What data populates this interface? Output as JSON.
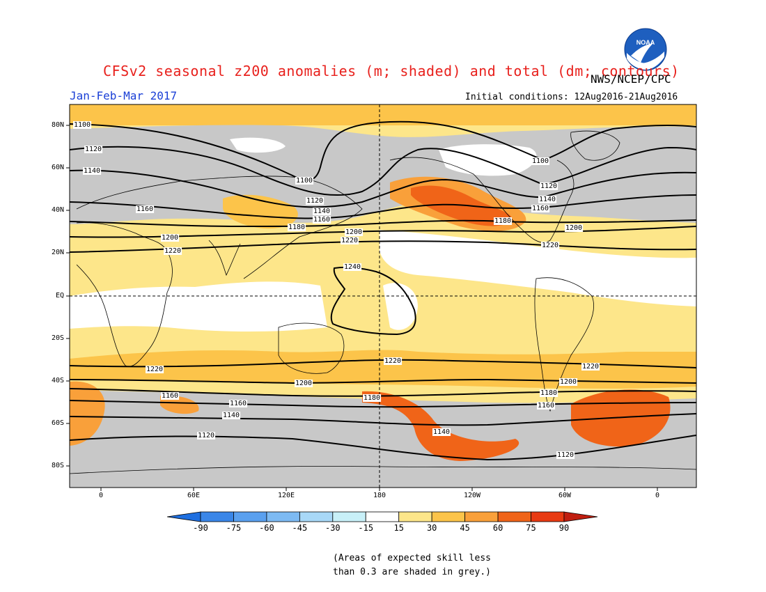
{
  "title": "CFSv2 seasonal z200 anomalies (m; shaded) and total (dm; contours)",
  "org": "NWS/NCEP/CPC",
  "logo_text": "NOAA",
  "season": "Jan-Feb-Mar 2017",
  "initial_conditions": "Initial conditions: 12Aug2016-21Aug2016",
  "lat_labels": [
    "80N",
    "60N",
    "40N",
    "20N",
    "EQ",
    "20S",
    "40S",
    "60S",
    "80S"
  ],
  "lon_labels": [
    "0",
    "60E",
    "120E",
    "180",
    "120W",
    "60W",
    "0"
  ],
  "colorbar": {
    "labels": [
      "-90",
      "-75",
      "-60",
      "-45",
      "-30",
      "-15",
      "15",
      "30",
      "45",
      "60",
      "75",
      "90"
    ],
    "colors": [
      "#1e6fe0",
      "#3a86e8",
      "#5aa0ef",
      "#7dbaf3",
      "#a8d8f7",
      "#c8f0f8",
      "#ffffff",
      "#fde68a",
      "#fcc44a",
      "#f9a03a",
      "#f06418",
      "#e83a12",
      "#c01e10"
    ]
  },
  "contour_labels": [
    "1100",
    "1120",
    "1140",
    "1160",
    "1180",
    "1200",
    "1220",
    "1240"
  ],
  "note_lines": [
    "(Areas of expected skill less",
    "than 0.3 are shaded in grey.)"
  ]
}
